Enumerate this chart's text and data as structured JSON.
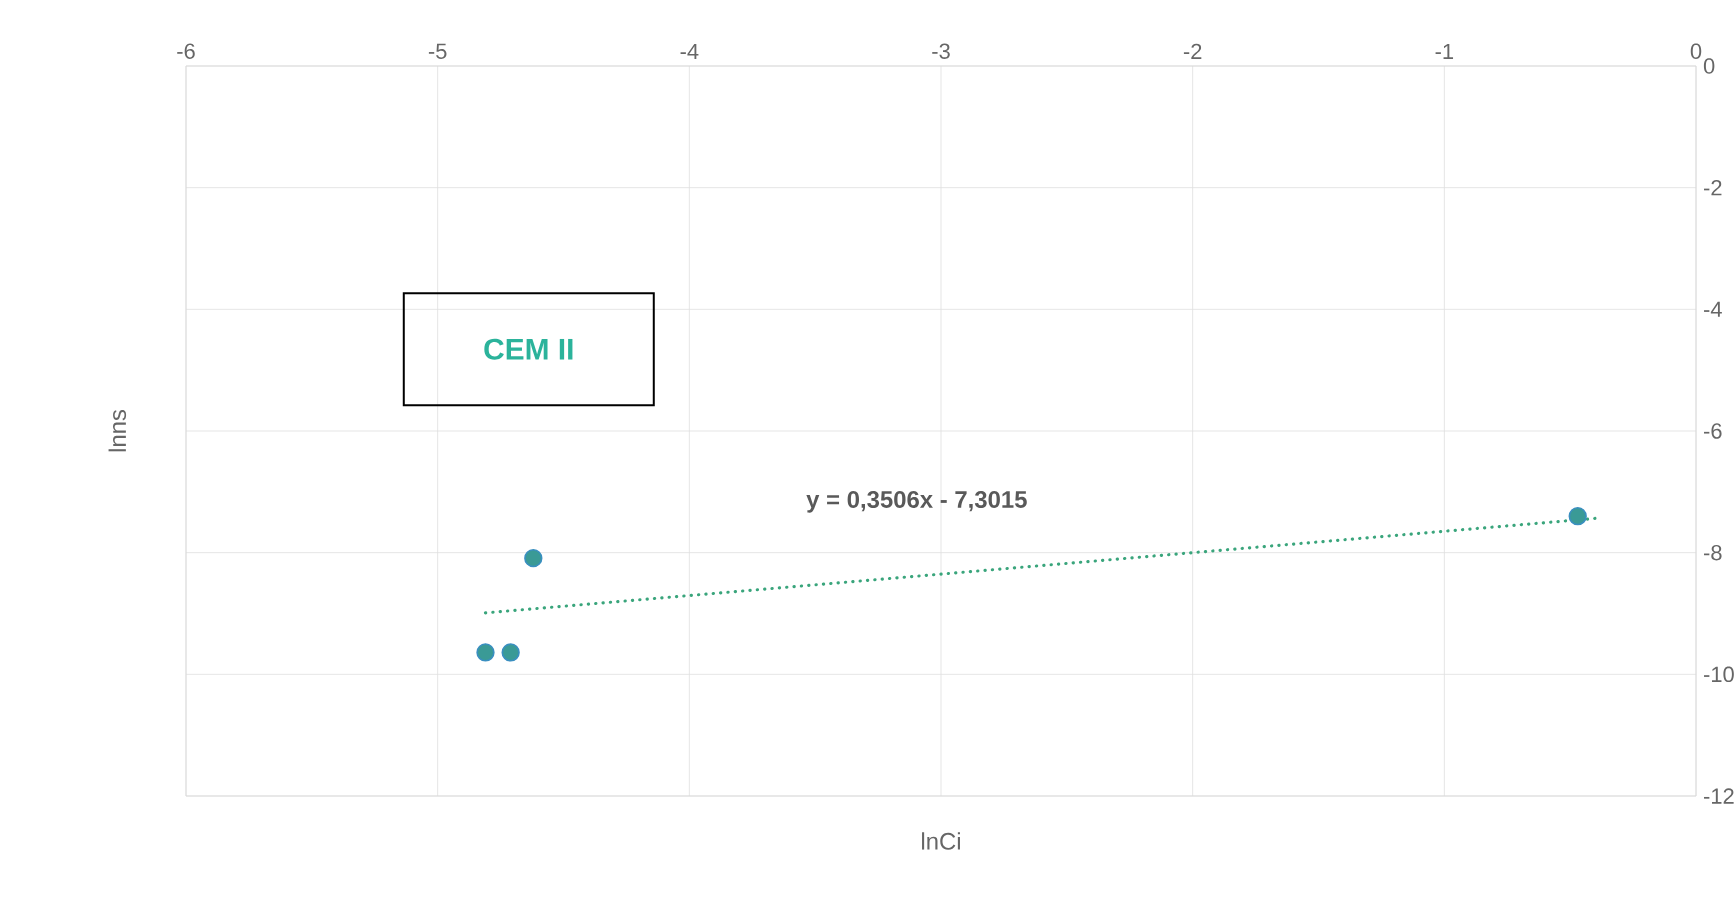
{
  "chart_data": {
    "type": "scatter",
    "xlabel": "lnCi",
    "ylabel": "lnns",
    "xlim": [
      -6,
      0
    ],
    "xticks": [
      -6,
      -5,
      -4,
      -3,
      -2,
      -1,
      0
    ],
    "ylim": [
      -12,
      0
    ],
    "yticks": [
      -12,
      -10,
      -8,
      -6,
      -4,
      -2,
      0
    ],
    "grid": true,
    "marker": "circle",
    "series": [
      {
        "color": "#3a9a96",
        "x": [
          -4.81,
          -4.71,
          -4.62,
          -0.47
        ],
        "values": [
          -9.64,
          -9.64,
          -8.09,
          -7.4
        ]
      },
      {
        "type": "line",
        "line_style": "dotted",
        "marker": "none",
        "color": "#3aa57c",
        "x": [
          -4.81,
          -0.38
        ],
        "values": [
          -8.99,
          -7.43
        ]
      }
    ],
    "annotations": [
      "CEM II",
      "y = 0,3506x - 7,3015"
    ]
  }
}
